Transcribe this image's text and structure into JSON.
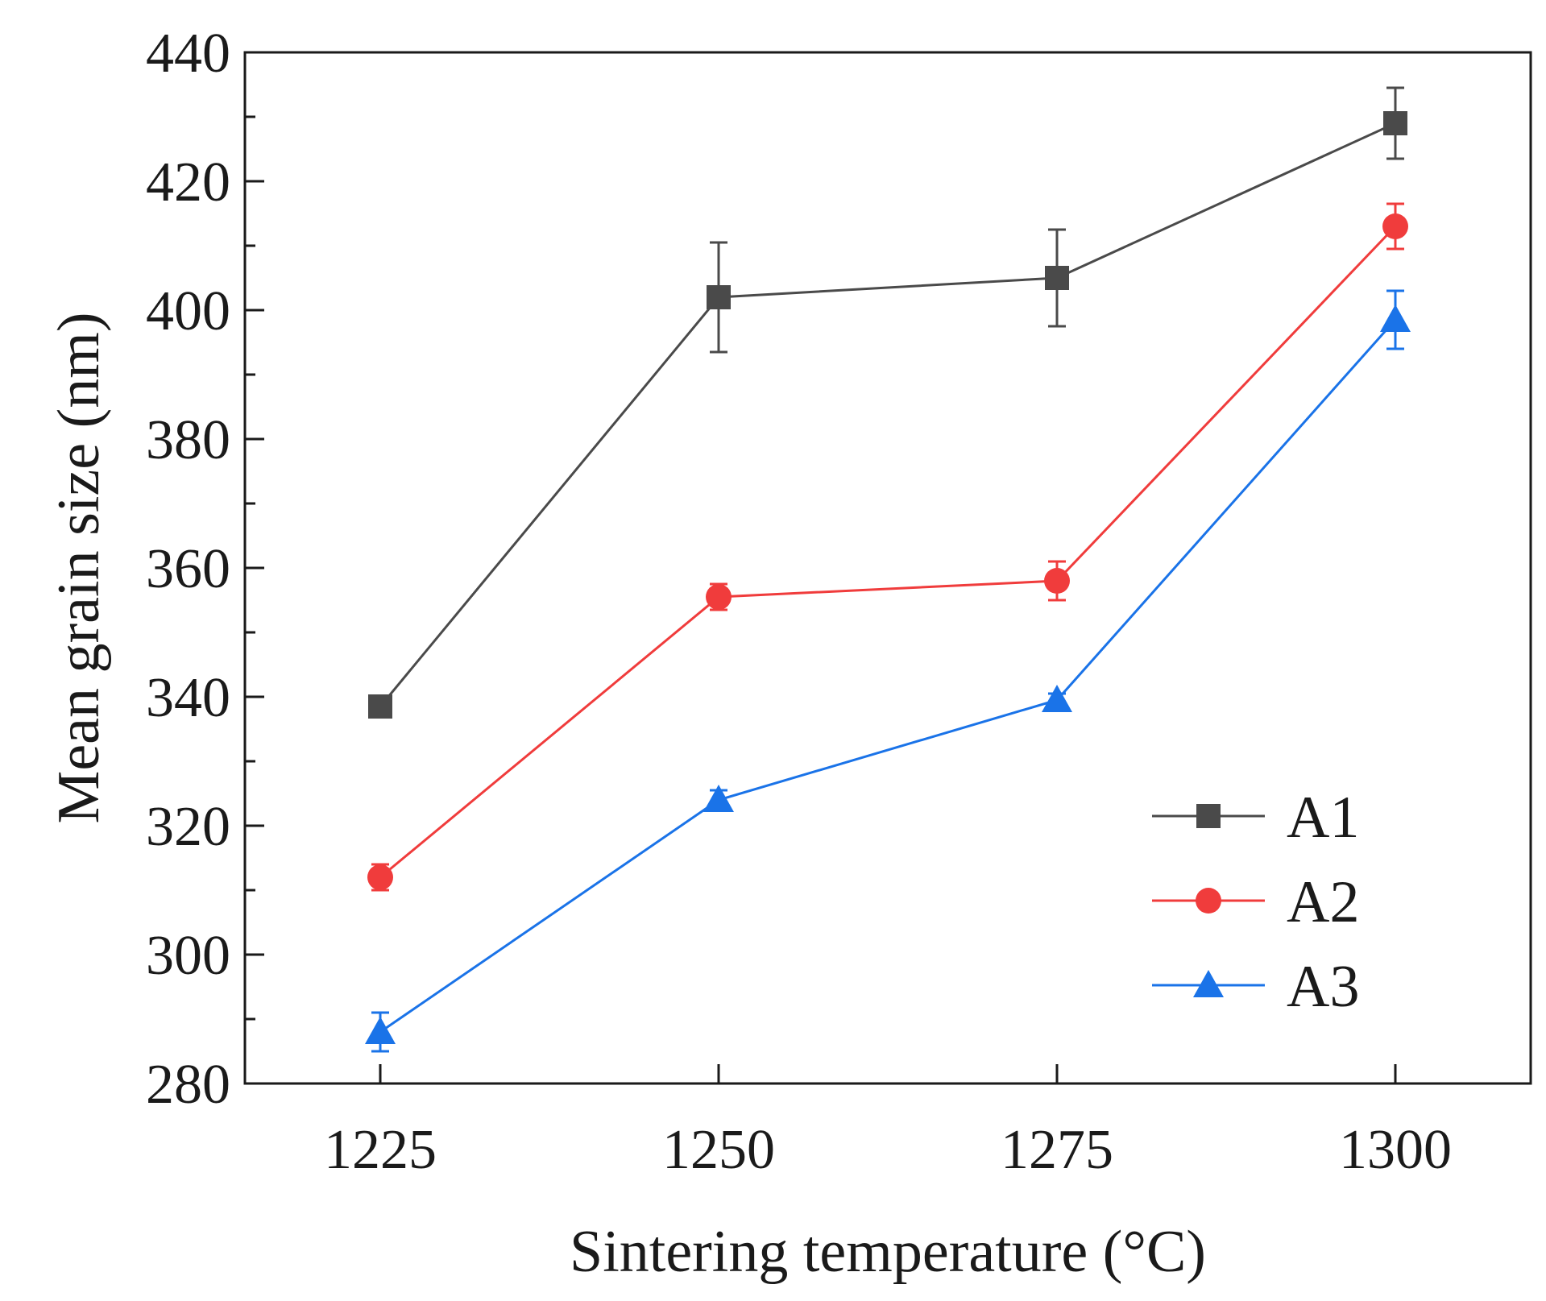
{
  "chart_data": {
    "type": "line",
    "title": "",
    "xlabel": "Sintering temperature (°C)",
    "ylabel": "Mean grain size (nm)",
    "categories": [
      "1225",
      "1250",
      "1275",
      "1300"
    ],
    "x": [
      1225,
      1250,
      1275,
      1300
    ],
    "xlim": [
      1215,
      1310
    ],
    "ylim": [
      280,
      440
    ],
    "yticks": [
      280,
      300,
      320,
      340,
      360,
      380,
      400,
      420,
      440
    ],
    "yticks_minor": [
      290,
      310,
      330,
      350,
      370,
      390,
      410,
      430
    ],
    "grid": false,
    "legend_position": "bottom-right",
    "series": [
      {
        "name": "A1",
        "color": "#4a4a4a",
        "marker": "square",
        "values": [
          338.5,
          402,
          405,
          429
        ],
        "errors": [
          1.5,
          8.5,
          7.5,
          5.5
        ]
      },
      {
        "name": "A2",
        "color": "#f03c3c",
        "marker": "circle",
        "values": [
          312,
          355.5,
          358,
          413
        ],
        "errors": [
          2,
          2,
          3,
          3.5
        ]
      },
      {
        "name": "A3",
        "color": "#1a73e8",
        "marker": "triangle",
        "values": [
          288,
          324,
          339.5,
          398.5
        ],
        "errors": [
          3,
          1.5,
          1,
          4.5
        ]
      }
    ]
  }
}
